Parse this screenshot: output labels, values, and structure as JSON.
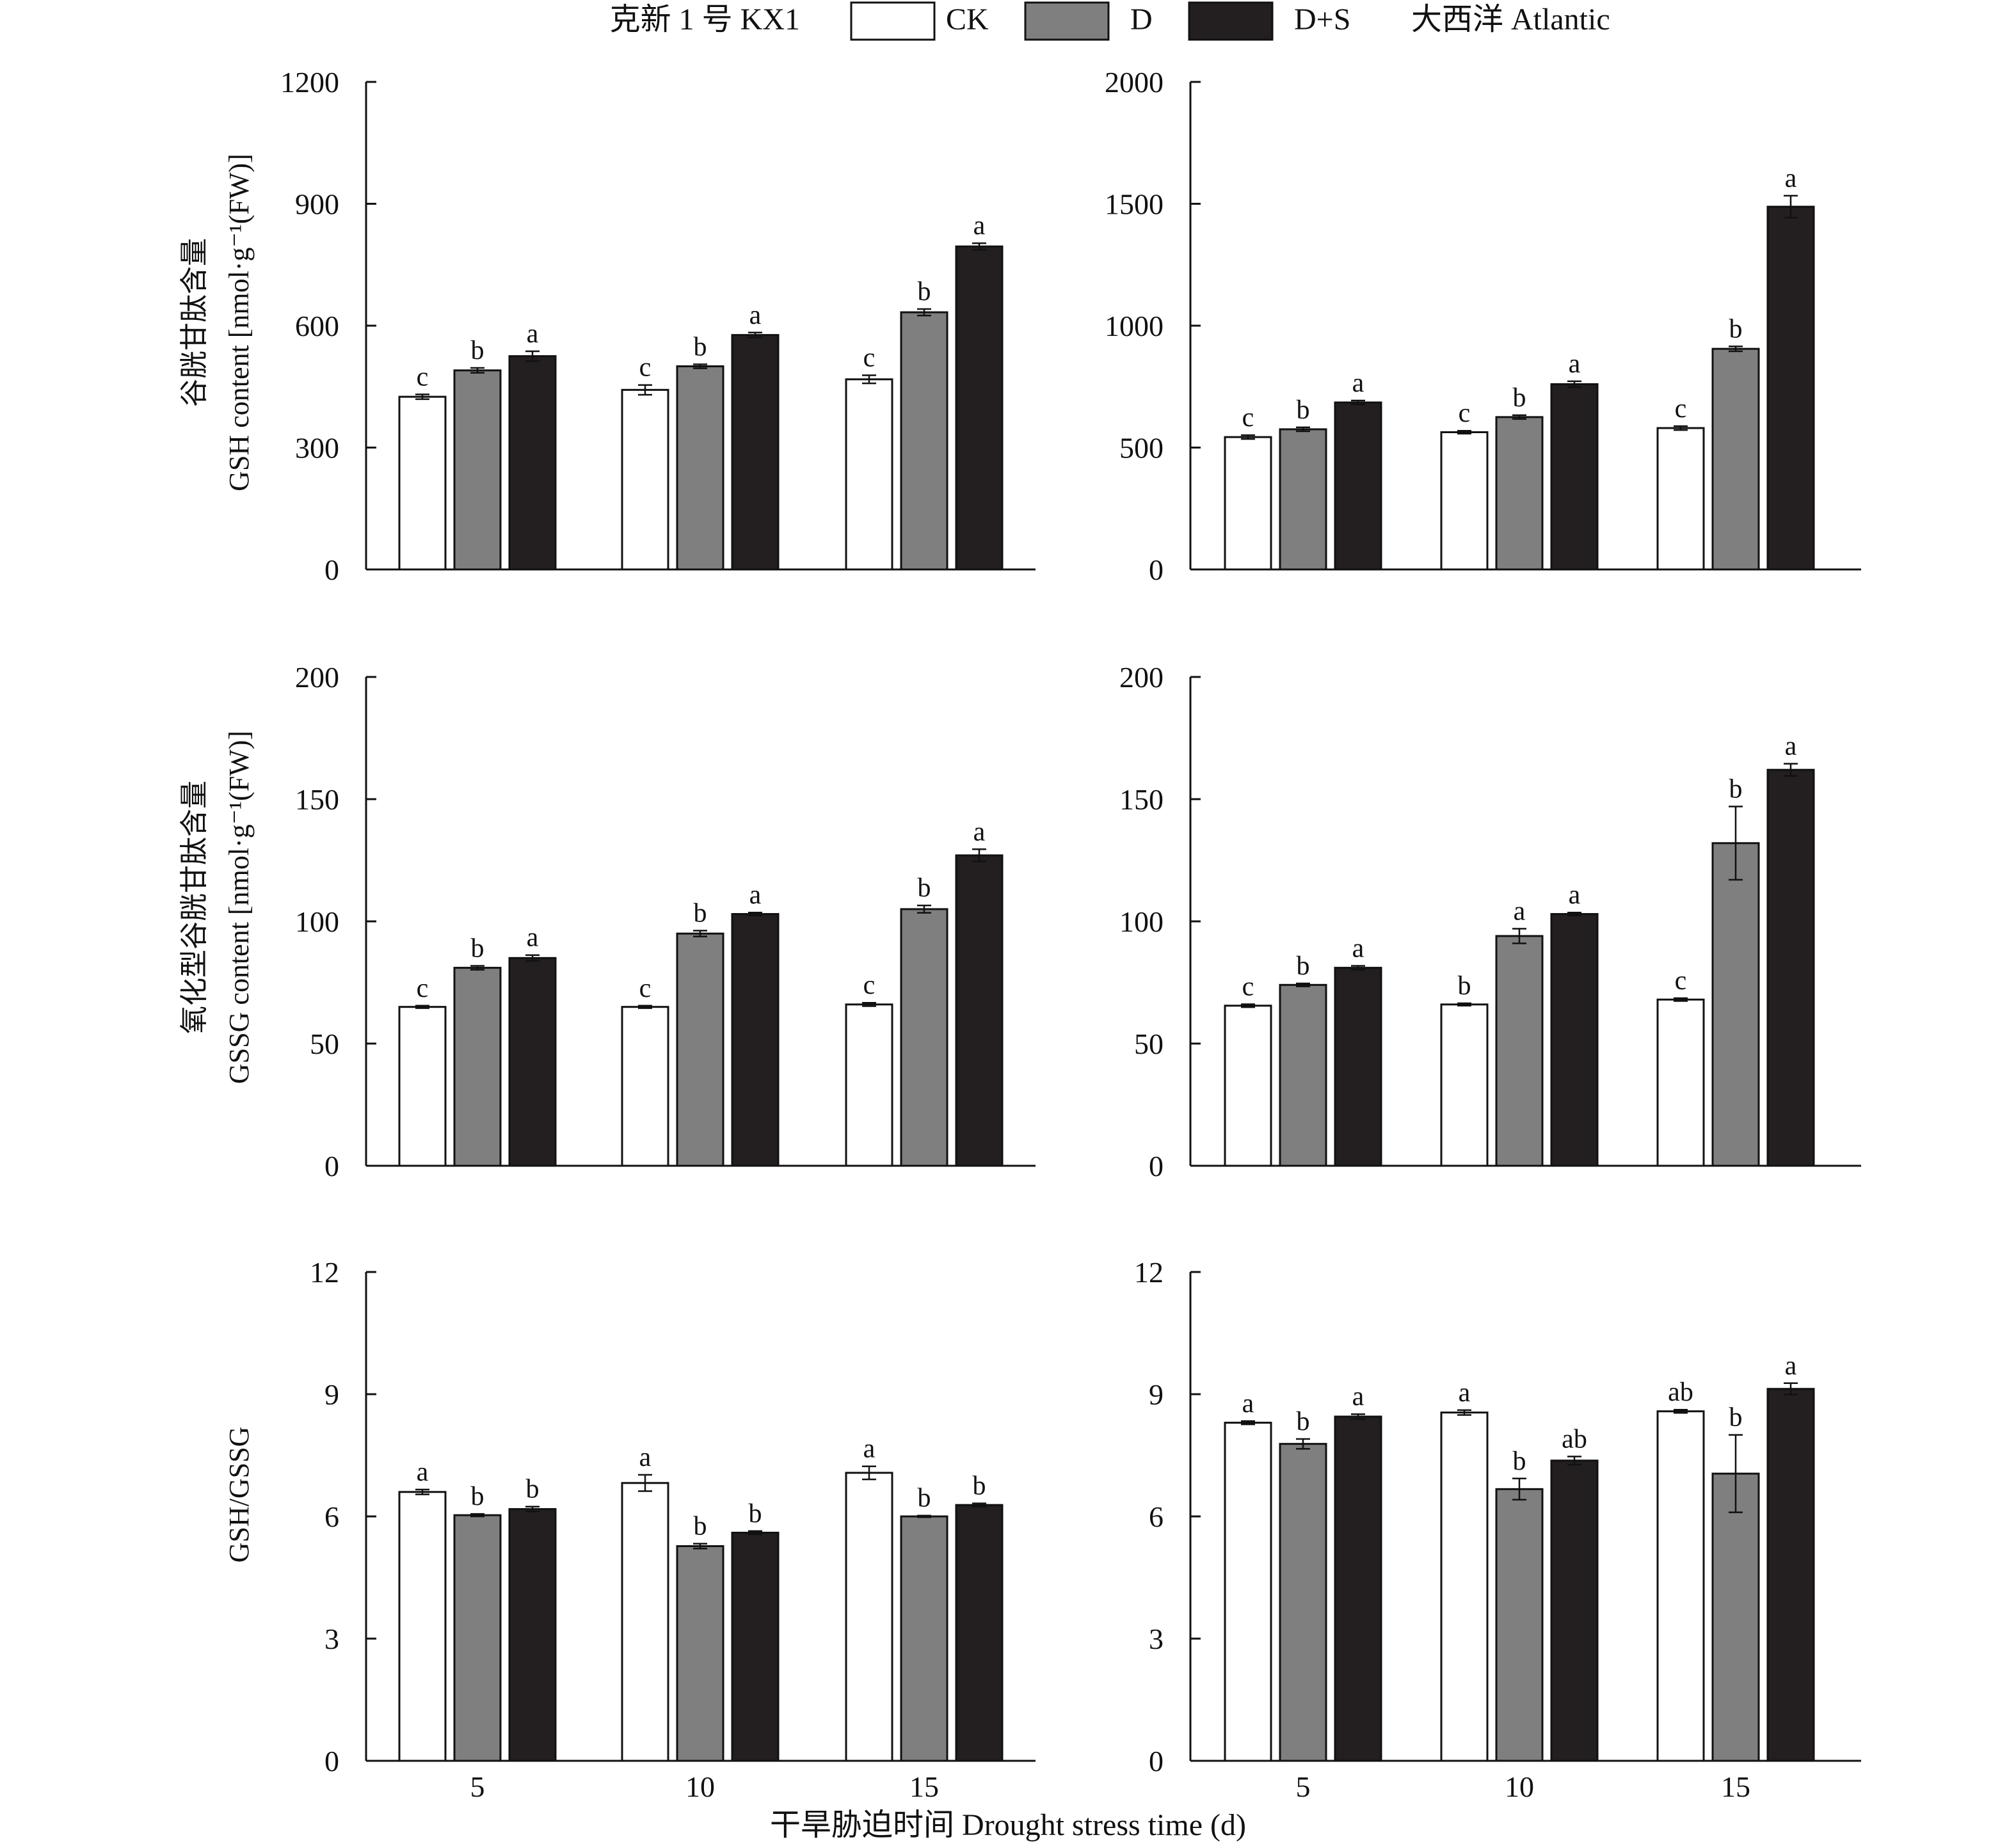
{
  "legend": {
    "left_title": "克新 1 号 KX1",
    "right_title": "大西洋 Atlantic",
    "entries": [
      {
        "name": "CK",
        "color": "#ffffff"
      },
      {
        "name": "D",
        "color": "#7f7f7f"
      },
      {
        "name": "D+S",
        "color": "#231f20"
      }
    ]
  },
  "xlabel": "干旱胁迫时间 Drought stress time (d)",
  "row_ylabels": [
    {
      "line1": "谷胱甘肽含量",
      "line2": "GSH content [nmol·g⁻¹(FW)]"
    },
    {
      "line1": "氧化型谷胱甘肽含量",
      "line2": "GSSG  content [nmol·g⁻¹(FW)]"
    },
    {
      "line1": "",
      "line2": "GSH/GSSG"
    }
  ],
  "chart_data": [
    {
      "type": "bar",
      "panel": "GSH KX1",
      "categories": [
        "5",
        "10",
        "15"
      ],
      "ylim": [
        0,
        1200
      ],
      "yticks": [
        0,
        300,
        600,
        900,
        1200
      ],
      "series": [
        {
          "name": "CK",
          "values": [
            425,
            442,
            468
          ],
          "errors": [
            6,
            12,
            10
          ],
          "letters": [
            "c",
            "c",
            "c"
          ]
        },
        {
          "name": "D",
          "values": [
            490,
            500,
            633
          ],
          "errors": [
            6,
            5,
            8
          ],
          "letters": [
            "b",
            "b",
            "b"
          ]
        },
        {
          "name": "D+S",
          "values": [
            525,
            577,
            795
          ],
          "errors": [
            12,
            6,
            8
          ],
          "letters": [
            "a",
            "a",
            "a"
          ]
        }
      ]
    },
    {
      "type": "bar",
      "panel": "GSH Atlantic",
      "categories": [
        "5",
        "10",
        "15"
      ],
      "ylim": [
        0,
        2000
      ],
      "yticks": [
        0,
        500,
        1000,
        1500,
        2000
      ],
      "series": [
        {
          "name": "CK",
          "values": [
            543,
            563,
            580
          ],
          "errors": [
            8,
            6,
            8
          ],
          "letters": [
            "c",
            "c",
            "c"
          ]
        },
        {
          "name": "D",
          "values": [
            575,
            625,
            905
          ],
          "errors": [
            8,
            8,
            10
          ],
          "letters": [
            "b",
            "b",
            "b"
          ]
        },
        {
          "name": "D+S",
          "values": [
            685,
            760,
            1488
          ],
          "errors": [
            8,
            12,
            45
          ],
          "letters": [
            "a",
            "a",
            "a"
          ]
        }
      ]
    },
    {
      "type": "bar",
      "panel": "GSSG KX1",
      "categories": [
        "5",
        "10",
        "15"
      ],
      "ylim": [
        0,
        200
      ],
      "yticks": [
        0,
        50,
        100,
        150,
        200
      ],
      "series": [
        {
          "name": "CK",
          "values": [
            65,
            65,
            66
          ],
          "errors": [
            0.5,
            0.5,
            0.7
          ],
          "letters": [
            "c",
            "c",
            "c"
          ]
        },
        {
          "name": "D",
          "values": [
            81,
            95,
            105
          ],
          "errors": [
            0.8,
            1.2,
            1.5
          ],
          "letters": [
            "b",
            "b",
            "b"
          ]
        },
        {
          "name": "D+S",
          "values": [
            85,
            103,
            127
          ],
          "errors": [
            1.2,
            0.6,
            2.5
          ],
          "letters": [
            "a",
            "a",
            "a"
          ]
        }
      ]
    },
    {
      "type": "bar",
      "panel": "GSSG Atlantic",
      "categories": [
        "5",
        "10",
        "15"
      ],
      "ylim": [
        0,
        200
      ],
      "yticks": [
        0,
        50,
        100,
        150,
        200
      ],
      "series": [
        {
          "name": "CK",
          "values": [
            65.5,
            66,
            68
          ],
          "errors": [
            0.6,
            0.5,
            0.6
          ],
          "letters": [
            "c",
            "b",
            "c"
          ]
        },
        {
          "name": "D",
          "values": [
            74,
            94,
            132
          ],
          "errors": [
            0.6,
            3,
            15
          ],
          "letters": [
            "b",
            "a",
            "b"
          ]
        },
        {
          "name": "D+S",
          "values": [
            81,
            103,
            162
          ],
          "errors": [
            0.8,
            0.6,
            2.5
          ],
          "letters": [
            "a",
            "a",
            "a"
          ]
        }
      ]
    },
    {
      "type": "bar",
      "panel": "GSH/GSSG KX1",
      "categories": [
        "5",
        "10",
        "15"
      ],
      "ylim": [
        0,
        12
      ],
      "yticks": [
        0,
        3,
        6,
        9,
        12
      ],
      "series": [
        {
          "name": "CK",
          "values": [
            6.6,
            6.82,
            7.07
          ],
          "errors": [
            0.06,
            0.2,
            0.16
          ],
          "letters": [
            "a",
            "a",
            "a"
          ]
        },
        {
          "name": "D",
          "values": [
            6.03,
            5.27,
            6.0
          ],
          "errors": [
            0.03,
            0.06,
            0.02
          ],
          "letters": [
            "b",
            "b",
            "b"
          ]
        },
        {
          "name": "D+S",
          "values": [
            6.18,
            5.6,
            6.28
          ],
          "errors": [
            0.06,
            0.04,
            0.04
          ],
          "letters": [
            "b",
            "b",
            "b"
          ]
        }
      ]
    },
    {
      "type": "bar",
      "panel": "GSH/GSSG Atlantic",
      "categories": [
        "5",
        "10",
        "15"
      ],
      "ylim": [
        0,
        12
      ],
      "yticks": [
        0,
        3,
        6,
        9,
        12
      ],
      "series": [
        {
          "name": "CK",
          "values": [
            8.3,
            8.55,
            8.58
          ],
          "errors": [
            0.04,
            0.06,
            0.04
          ],
          "letters": [
            "a",
            "a",
            "ab"
          ]
        },
        {
          "name": "D",
          "values": [
            7.78,
            6.67,
            7.05
          ],
          "errors": [
            0.12,
            0.26,
            0.95
          ],
          "letters": [
            "b",
            "b",
            "b"
          ]
        },
        {
          "name": "D+S",
          "values": [
            8.45,
            7.37,
            9.13
          ],
          "errors": [
            0.06,
            0.1,
            0.14
          ],
          "letters": [
            "a",
            "ab",
            "a"
          ]
        }
      ]
    }
  ]
}
